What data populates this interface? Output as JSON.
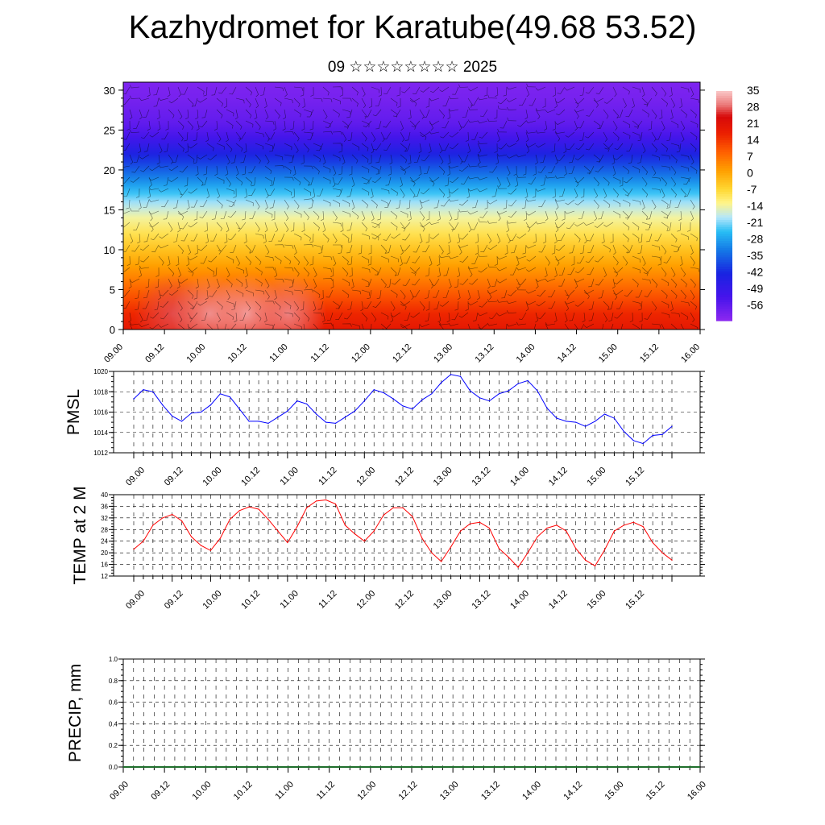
{
  "title": "Kazhydromet for Karatube(49.68 53.52)",
  "subtitle": "09 ☆☆☆☆☆☆☆☆ 2025",
  "x_tick_labels": [
    "09.00",
    "09.12",
    "10.00",
    "10.12",
    "11.00",
    "11.12",
    "12.00",
    "12.12",
    "13.00",
    "13.12",
    "14.00",
    "14.12",
    "15.00",
    "15.12",
    "16.00"
  ],
  "chart_data": [
    {
      "type": "heatmap",
      "title": "",
      "xlabel": "",
      "ylabel": "",
      "x": [
        "09.00",
        "09.12",
        "10.00",
        "10.12",
        "11.00",
        "11.12",
        "12.00",
        "12.12",
        "13.00",
        "13.12",
        "14.00",
        "14.12",
        "15.00",
        "15.12",
        "16.00"
      ],
      "ylim": [
        0,
        31
      ],
      "y_ticks": [
        0,
        5,
        10,
        15,
        20,
        25,
        30
      ],
      "value_description": "temperature profile with wind barbs",
      "colorbar_labels": [
        "35",
        "28",
        "21",
        "14",
        "7",
        "0",
        "-7",
        "-14",
        "-21",
        "-28",
        "-35",
        "-42",
        "-49",
        "-56"
      ],
      "colorbar_range": [
        -60,
        38
      ],
      "profile_levels": [
        0,
        2,
        4,
        6,
        8,
        10,
        12,
        14,
        15,
        16,
        17,
        18,
        19,
        20,
        21,
        22,
        23,
        24,
        25,
        26,
        27,
        28,
        29,
        31
      ],
      "profile_values": [
        22,
        19,
        14,
        9,
        4,
        -1,
        -6,
        -11,
        -14,
        -17,
        -21,
        -25,
        -29,
        -33,
        -37,
        -41,
        -45,
        -49,
        -52,
        -54,
        -55,
        -56,
        -57,
        -58
      ],
      "warm_cores": [
        {
          "x": 1.2,
          "y": 2,
          "value": 30
        },
        {
          "x": 2.1,
          "y": 2,
          "value": 34
        },
        {
          "x": 3.0,
          "y": 2,
          "value": 35
        },
        {
          "x": 4.0,
          "y": 2,
          "value": 33
        }
      ]
    },
    {
      "type": "line",
      "ylabel": "PMSL",
      "ylim": [
        1012,
        1020
      ],
      "y_ticks": [
        1012,
        1014,
        1016,
        1018,
        1020
      ],
      "x_step_hours": 3,
      "series": [
        {
          "color": "#0000ff",
          "values": [
            1017.3,
            1018.2,
            1018.0,
            1016.7,
            1015.6,
            1015.1,
            1015.9,
            1016.0,
            1016.7,
            1017.8,
            1017.5,
            1016.3,
            1015.1,
            1015.1,
            1014.9,
            1015.5,
            1016.1,
            1017.1,
            1016.8,
            1015.8,
            1015.0,
            1014.9,
            1015.5,
            1016.1,
            1017.1,
            1018.2,
            1017.9,
            1017.3,
            1016.6,
            1016.3,
            1017.2,
            1017.8,
            1018.9,
            1019.7,
            1019.5,
            1018.1,
            1017.4,
            1017.1,
            1017.8,
            1018.1,
            1018.8,
            1019.1,
            1018.1,
            1016.4,
            1015.4,
            1015.1,
            1015.0,
            1014.6,
            1015.1,
            1015.8,
            1015.4,
            1014.1,
            1013.2,
            1012.9,
            1013.7,
            1013.8,
            1014.6
          ]
        }
      ]
    },
    {
      "type": "line",
      "ylabel": "TEMP at 2 M",
      "ylim": [
        12,
        40
      ],
      "y_ticks": [
        12,
        16,
        20,
        24,
        28,
        32,
        36,
        40
      ],
      "x_step_hours": 3,
      "series": [
        {
          "color": "#ff0000",
          "values": [
            21.2,
            24.0,
            29.5,
            32.0,
            33.2,
            31.0,
            25.5,
            22.5,
            20.8,
            25.0,
            31.5,
            34.5,
            35.8,
            35.0,
            31.5,
            27.5,
            23.5,
            29.0,
            35.5,
            37.8,
            38.2,
            36.8,
            29.5,
            26.5,
            24.0,
            27.5,
            33.0,
            35.5,
            35.5,
            32.5,
            25.0,
            20.0,
            17.0,
            22.0,
            27.5,
            30.0,
            30.5,
            28.5,
            21.5,
            18.5,
            15.0,
            20.0,
            25.5,
            28.5,
            29.5,
            27.5,
            21.5,
            17.5,
            15.5,
            21.0,
            27.5,
            29.5,
            30.5,
            29.0,
            23.5,
            20.0,
            17.5
          ]
        }
      ]
    },
    {
      "type": "bar",
      "ylabel": "PRECIP, mm",
      "ylim": [
        0,
        1
      ],
      "y_ticks": [
        "0.0",
        "0.2",
        "0.4",
        "0.6",
        "0.8",
        "1.0"
      ],
      "x_step_hours": 3,
      "values": [
        0,
        0,
        0,
        0,
        0,
        0,
        0,
        0,
        0,
        0,
        0,
        0,
        0,
        0,
        0,
        0,
        0,
        0,
        0,
        0,
        0,
        0,
        0,
        0,
        0,
        0,
        0,
        0,
        0,
        0,
        0,
        0,
        0,
        0,
        0,
        0,
        0,
        0,
        0,
        0,
        0,
        0,
        0,
        0,
        0,
        0,
        0,
        0,
        0,
        0,
        0,
        0,
        0,
        0,
        0,
        0
      ]
    }
  ]
}
